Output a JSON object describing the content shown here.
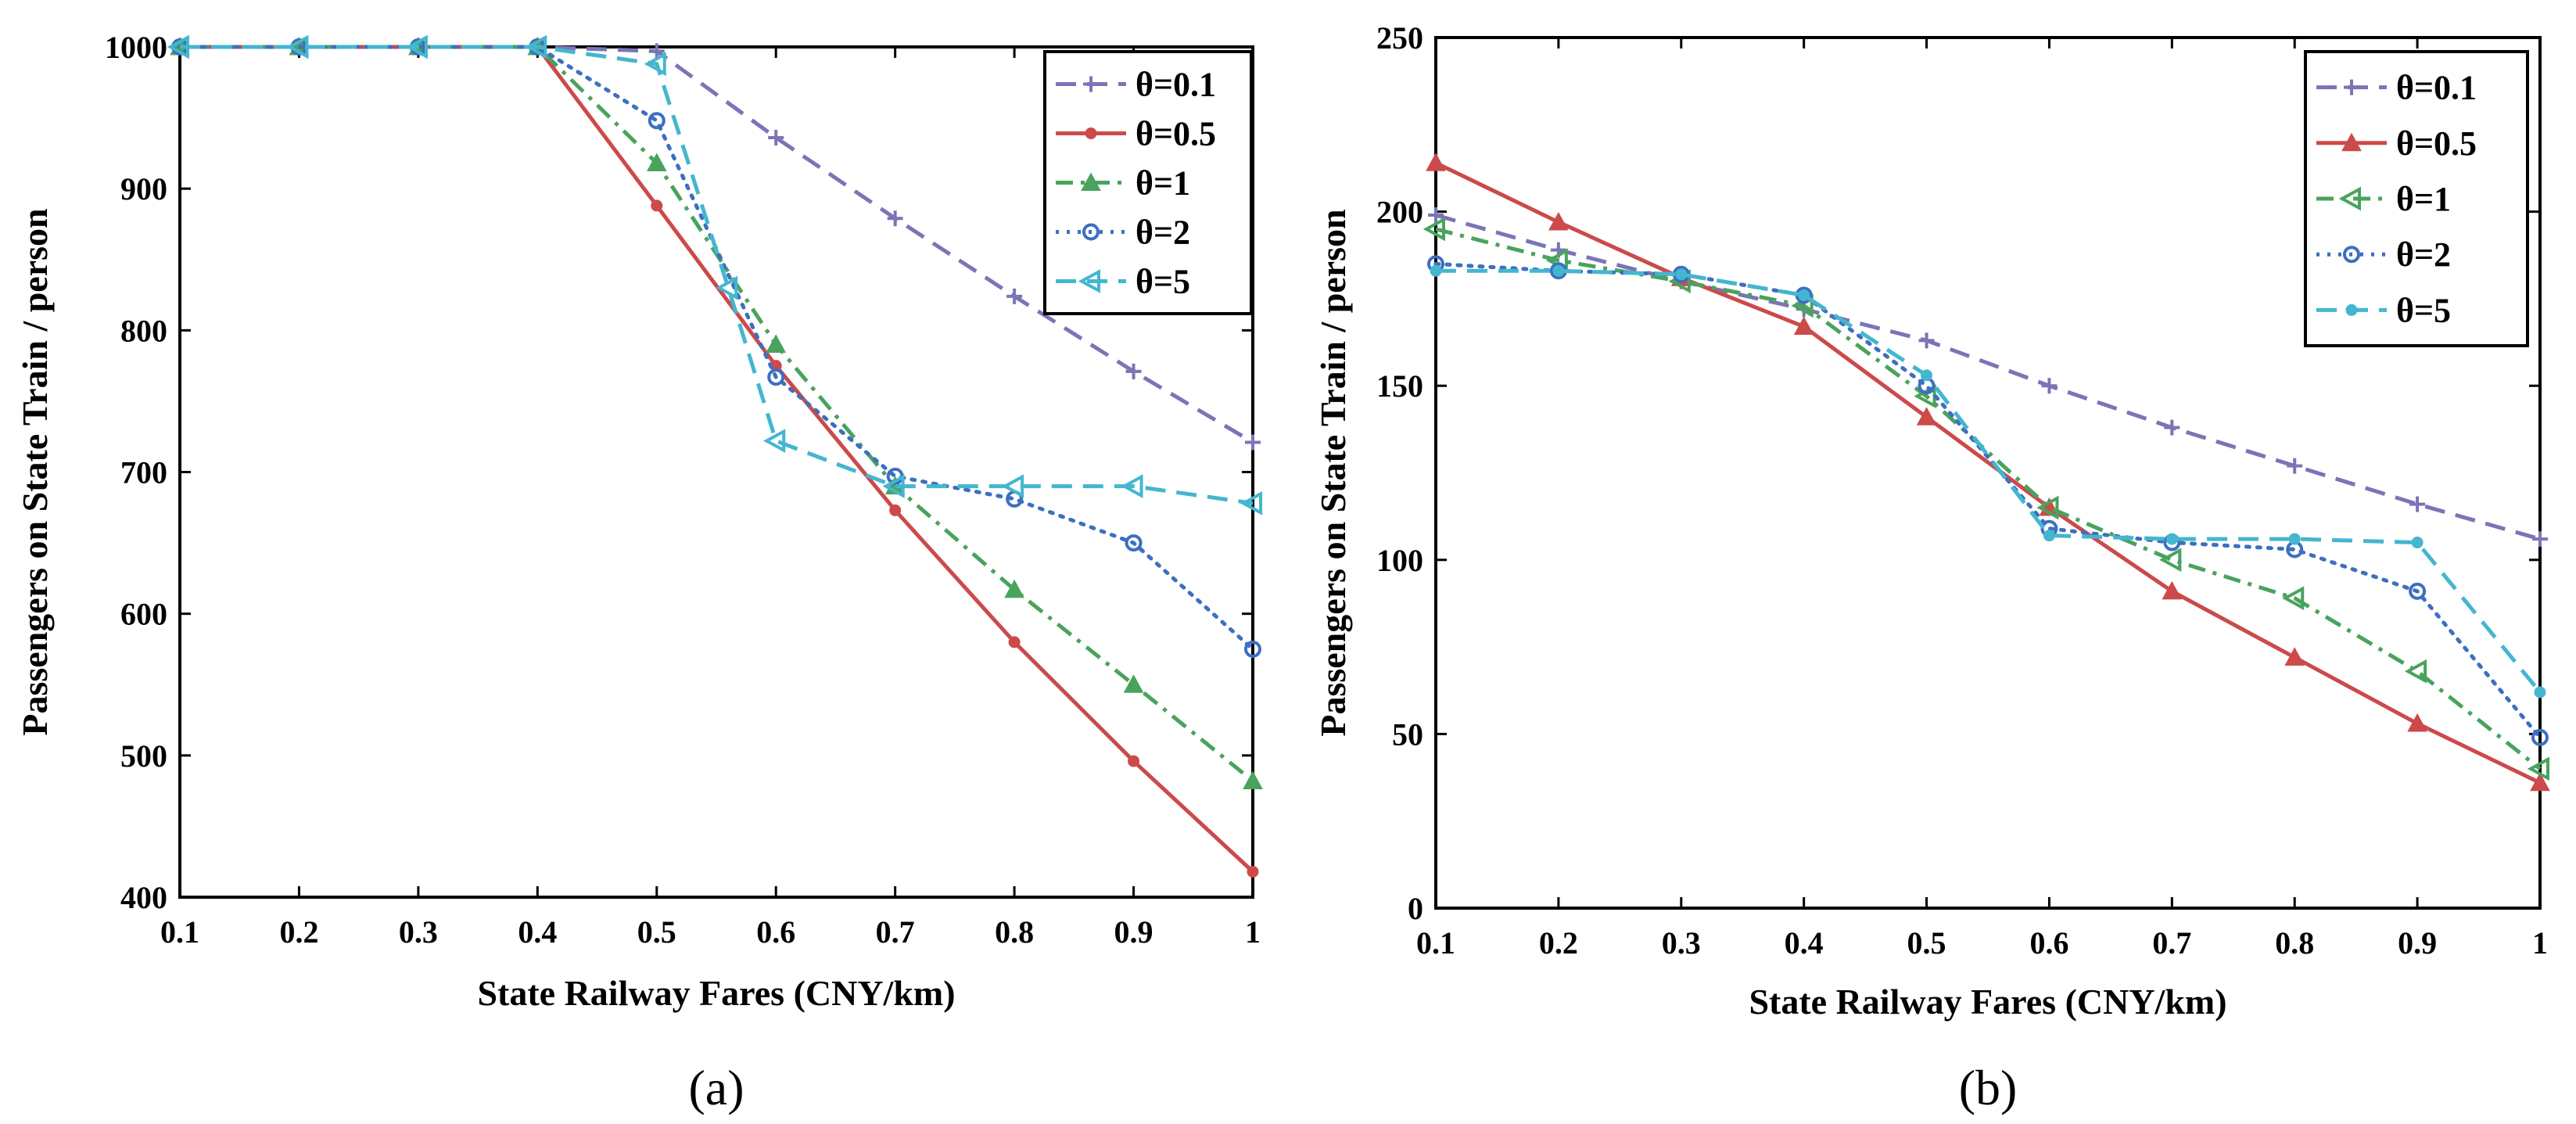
{
  "chart_data": [
    {
      "id": "a",
      "type": "line",
      "caption": "(a)",
      "xlabel": "State Railway Fares (CNY/km)",
      "ylabel": "Passengers on State Train / person",
      "x": [
        0.1,
        0.2,
        0.3,
        0.4,
        0.5,
        0.6,
        0.7,
        0.8,
        0.9,
        1
      ],
      "xticks": [
        "0.1",
        "0.2",
        "0.3",
        "0.4",
        "0.5",
        "0.6",
        "0.7",
        "0.8",
        "0.9",
        "1"
      ],
      "xlim": [
        0.1,
        1
      ],
      "ylim": [
        400,
        1000
      ],
      "yticks": [
        "400",
        "500",
        "600",
        "700",
        "800",
        "900",
        "1000"
      ],
      "legend_position": "top-right",
      "series": [
        {
          "name": "θ=0.1",
          "color": "#7b74b6",
          "dash": "dashed",
          "marker": "plus",
          "x": [
            0.1,
            0.2,
            0.3,
            0.4,
            0.5,
            0.6,
            0.7,
            0.8,
            0.9,
            1
          ],
          "values": [
            1000,
            1000,
            1000,
            1000,
            997,
            936,
            879,
            824,
            771,
            721
          ]
        },
        {
          "name": "θ=0.5",
          "color": "#cc4a4a",
          "dash": "solid",
          "marker": "dot",
          "x": [
            0.1,
            0.2,
            0.3,
            0.4,
            0.5,
            0.6,
            0.7,
            0.8,
            0.9,
            1
          ],
          "values": [
            1000,
            1000,
            1000,
            1000,
            888,
            775,
            673,
            580,
            496,
            418
          ]
        },
        {
          "name": "θ=1",
          "color": "#49a35d",
          "dash": "dashdot",
          "marker": "triangle-up",
          "x": [
            0.1,
            0.2,
            0.3,
            0.4,
            0.5,
            0.6,
            0.7,
            0.8,
            0.9,
            1
          ],
          "values": [
            1000,
            1000,
            1000,
            1000,
            918,
            790,
            690,
            617,
            550,
            482
          ]
        },
        {
          "name": "θ=2",
          "color": "#3c6fc1",
          "dash": "dotted",
          "marker": "circle",
          "x": [
            0.1,
            0.2,
            0.3,
            0.4,
            0.5,
            0.6,
            0.7,
            0.8,
            0.9,
            1
          ],
          "values": [
            1000,
            1000,
            1000,
            1000,
            948,
            767,
            697,
            681,
            650,
            575
          ]
        },
        {
          "name": "θ=5",
          "color": "#44b6cf",
          "dash": "dashed",
          "marker": "triangle-left",
          "x": [
            0.1,
            0.2,
            0.3,
            0.4,
            0.5,
            0.56,
            0.6,
            0.7,
            0.8,
            0.9,
            1
          ],
          "values": [
            1000,
            1000,
            1000,
            1000,
            988,
            830,
            722,
            690,
            690,
            690,
            678
          ]
        }
      ]
    },
    {
      "id": "b",
      "type": "line",
      "caption": "(b)",
      "xlabel": "State Railway Fares (CNY/km)",
      "ylabel": "Passengers on State Train / person",
      "x": [
        0.1,
        0.2,
        0.3,
        0.4,
        0.5,
        0.6,
        0.7,
        0.8,
        0.9,
        1
      ],
      "xticks": [
        "0.1",
        "0.2",
        "0.3",
        "0.4",
        "0.5",
        "0.6",
        "0.7",
        "0.8",
        "0.9",
        "1"
      ],
      "xlim": [
        0.1,
        1
      ],
      "ylim": [
        0,
        250
      ],
      "yticks": [
        "0",
        "50",
        "100",
        "150",
        "200",
        "250"
      ],
      "legend_position": "top-right",
      "series": [
        {
          "name": "θ=0.1",
          "color": "#7b74b6",
          "dash": "dashed",
          "marker": "plus",
          "x": [
            0.1,
            0.2,
            0.3,
            0.4,
            0.5,
            0.6,
            0.7,
            0.8,
            0.9,
            1
          ],
          "values": [
            199,
            189,
            180,
            172,
            163,
            150,
            138,
            127,
            116,
            106
          ]
        },
        {
          "name": "θ=0.5",
          "color": "#cc4a4a",
          "dash": "solid",
          "marker": "triangle-up",
          "x": [
            0.1,
            0.2,
            0.3,
            0.4,
            0.5,
            0.6,
            0.7,
            0.8,
            0.9,
            1
          ],
          "values": [
            214,
            197,
            181,
            167,
            141,
            115,
            91,
            72,
            53,
            36
          ]
        },
        {
          "name": "θ=1",
          "color": "#49a35d",
          "dash": "dashdot",
          "marker": "triangle-left",
          "x": [
            0.1,
            0.2,
            0.3,
            0.4,
            0.5,
            0.6,
            0.7,
            0.8,
            0.9,
            1
          ],
          "values": [
            195,
            186,
            180,
            173,
            147,
            115,
            100,
            89,
            68,
            40
          ]
        },
        {
          "name": "θ=2",
          "color": "#3c6fc1",
          "dash": "dotted",
          "marker": "circle",
          "x": [
            0.1,
            0.2,
            0.3,
            0.4,
            0.5,
            0.6,
            0.7,
            0.8,
            0.9,
            1
          ],
          "values": [
            185,
            183,
            182,
            176,
            150,
            109,
            105,
            103,
            91,
            49
          ]
        },
        {
          "name": "θ=5",
          "color": "#44b6cf",
          "dash": "dashed",
          "marker": "dot",
          "x": [
            0.1,
            0.2,
            0.3,
            0.4,
            0.5,
            0.6,
            0.7,
            0.8,
            0.9,
            1
          ],
          "values": [
            183,
            183,
            182,
            176,
            153,
            107,
            106,
            106,
            105,
            62
          ]
        }
      ]
    }
  ]
}
